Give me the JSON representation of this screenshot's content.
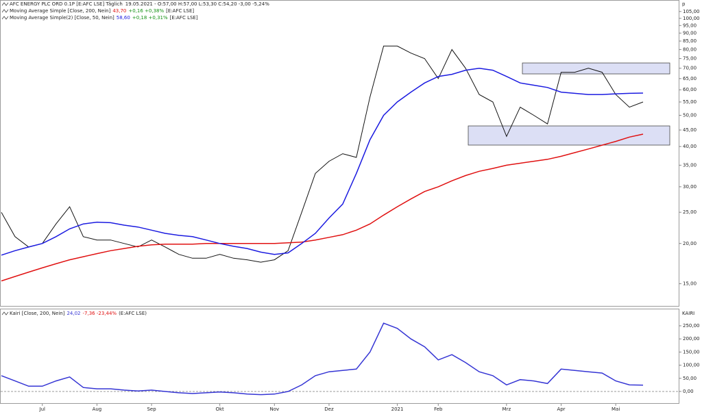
{
  "chart_data": [
    {
      "type": "line",
      "title": "AFC ENERGY PLC ORD 0.1P [E:AFC LSE] Täglich",
      "subtitle": "19.05.2021 - O:57,00 H:57,00 L:53,30 C:54,20 -3,00 -5,24%",
      "y_axis_label": "p",
      "log_scale": true,
      "ylim": [
        12.8,
        114
      ],
      "yticks": [
        {
          "value": 15,
          "label": "15,00"
        },
        {
          "value": 20,
          "label": "20,00"
        },
        {
          "value": 25,
          "label": "25,00"
        },
        {
          "value": 30,
          "label": "30,00"
        },
        {
          "value": 35,
          "label": "35,00"
        },
        {
          "value": 40,
          "label": "40,00"
        },
        {
          "value": 45,
          "label": "45,00"
        },
        {
          "value": 50,
          "label": "50,00"
        },
        {
          "value": 55,
          "label": "55,00"
        },
        {
          "value": 60,
          "label": "60,00"
        },
        {
          "value": 65,
          "label": "65,00"
        },
        {
          "value": 70,
          "label": "70,00"
        },
        {
          "value": 75,
          "label": "75,00"
        },
        {
          "value": 80,
          "label": "80,00"
        },
        {
          "value": 85,
          "label": "85,00"
        },
        {
          "value": 90,
          "label": "90,00"
        },
        {
          "value": 95,
          "label": "95,00"
        },
        {
          "value": 100,
          "label": "100,00"
        },
        {
          "value": 105,
          "label": "105,00"
        }
      ],
      "series": [
        {
          "color": "#111111",
          "values": [
            25,
            21,
            19.5,
            20,
            23,
            26,
            21,
            20.5,
            20.5,
            20,
            19.5,
            20.5,
            19.5,
            18.5,
            18,
            18,
            18.5,
            18,
            17.8,
            17.5,
            17.8,
            19,
            25,
            33,
            36,
            38,
            37,
            57,
            82,
            82,
            78,
            75,
            65,
            80,
            70,
            58,
            55,
            43,
            53,
            50,
            47,
            68,
            68,
            70,
            68,
            58,
            53,
            55
          ]
        },
        {
          "name": "Moving Average Simple [Close, 200, Nein]",
          "value_label": "43,70",
          "change": "+0,16 +0,38%",
          "source": "[E:AFC LSE]",
          "color": "#e01010",
          "values": [
            15.3,
            15.8,
            16.3,
            16.8,
            17.3,
            17.8,
            18.2,
            18.6,
            19.0,
            19.3,
            19.6,
            19.8,
            19.9,
            19.9,
            19.9,
            20.0,
            20.0,
            20.0,
            20.0,
            20.0,
            20.0,
            20.1,
            20.2,
            20.5,
            20.9,
            21.3,
            22.0,
            23.0,
            24.5,
            26.0,
            27.5,
            29.0,
            30.0,
            31.3,
            32.5,
            33.5,
            34.2,
            35.0,
            35.5,
            36.0,
            36.5,
            37.3,
            38.3,
            39.3,
            40.4,
            41.5,
            42.8,
            43.7
          ]
        },
        {
          "name": "Moving Average Simple(2) [Close, 50, Nein]",
          "value_label": "58,60",
          "change": "+0,18 +0,31%",
          "source": "[E:AFC LSE]",
          "color": "#1a1ae0",
          "values": [
            18.4,
            19.0,
            19.5,
            20.0,
            21.0,
            22.2,
            23.0,
            23.3,
            23.2,
            22.8,
            22.5,
            22.0,
            21.5,
            21.2,
            21.0,
            20.5,
            20.0,
            19.6,
            19.3,
            18.8,
            18.5,
            18.7,
            20.0,
            21.5,
            24.0,
            26.5,
            33.0,
            42.0,
            50.0,
            55.0,
            59.0,
            63.0,
            66.0,
            67.0,
            69.0,
            70.0,
            69.0,
            66.0,
            63.0,
            62.0,
            61.0,
            59.0,
            58.5,
            58.0,
            58.0,
            58.3,
            58.5,
            58.6
          ]
        }
      ]
    },
    {
      "type": "line",
      "y_axis_label": "KAIRI",
      "ylim": [
        -47,
        312.5
      ],
      "yticks": [
        {
          "value": 0,
          "label": "0,00"
        },
        {
          "value": 50,
          "label": "50,00"
        },
        {
          "value": 100,
          "label": "100,00"
        },
        {
          "value": 150,
          "label": "150,00"
        },
        {
          "value": 200,
          "label": "200,00"
        },
        {
          "value": 250,
          "label": "250,00"
        }
      ],
      "zero_line": true,
      "categories": [
        null,
        null,
        null,
        "Jul",
        null,
        null,
        null,
        "Aug",
        null,
        null,
        null,
        "Sep",
        null,
        null,
        null,
        null,
        "Okt",
        null,
        null,
        null,
        "Nov",
        null,
        null,
        null,
        "Dez",
        null,
        null,
        null,
        null,
        "2021",
        null,
        null,
        "Feb",
        null,
        null,
        null,
        null,
        "Mrz",
        null,
        null,
        null,
        "Apr",
        null,
        null,
        null,
        "Mai",
        null,
        null
      ],
      "series": [
        {
          "name": "Kairi [Close, 200, Nein]",
          "value_label": "24,02",
          "change": "-7,36 -23,44%",
          "source": "(E:AFC LSE)",
          "color": "#3434d4",
          "values": [
            60,
            40,
            20,
            20,
            40,
            55,
            15,
            10,
            10,
            5,
            2,
            5,
            0,
            -5,
            -8,
            -5,
            -2,
            -5,
            -10,
            -12,
            -10,
            0,
            25,
            60,
            75,
            80,
            85,
            150,
            260,
            240,
            200,
            170,
            120,
            140,
            110,
            75,
            60,
            25,
            45,
            40,
            30,
            85,
            80,
            75,
            70,
            40,
            25,
            24.02
          ]
        }
      ]
    }
  ]
}
